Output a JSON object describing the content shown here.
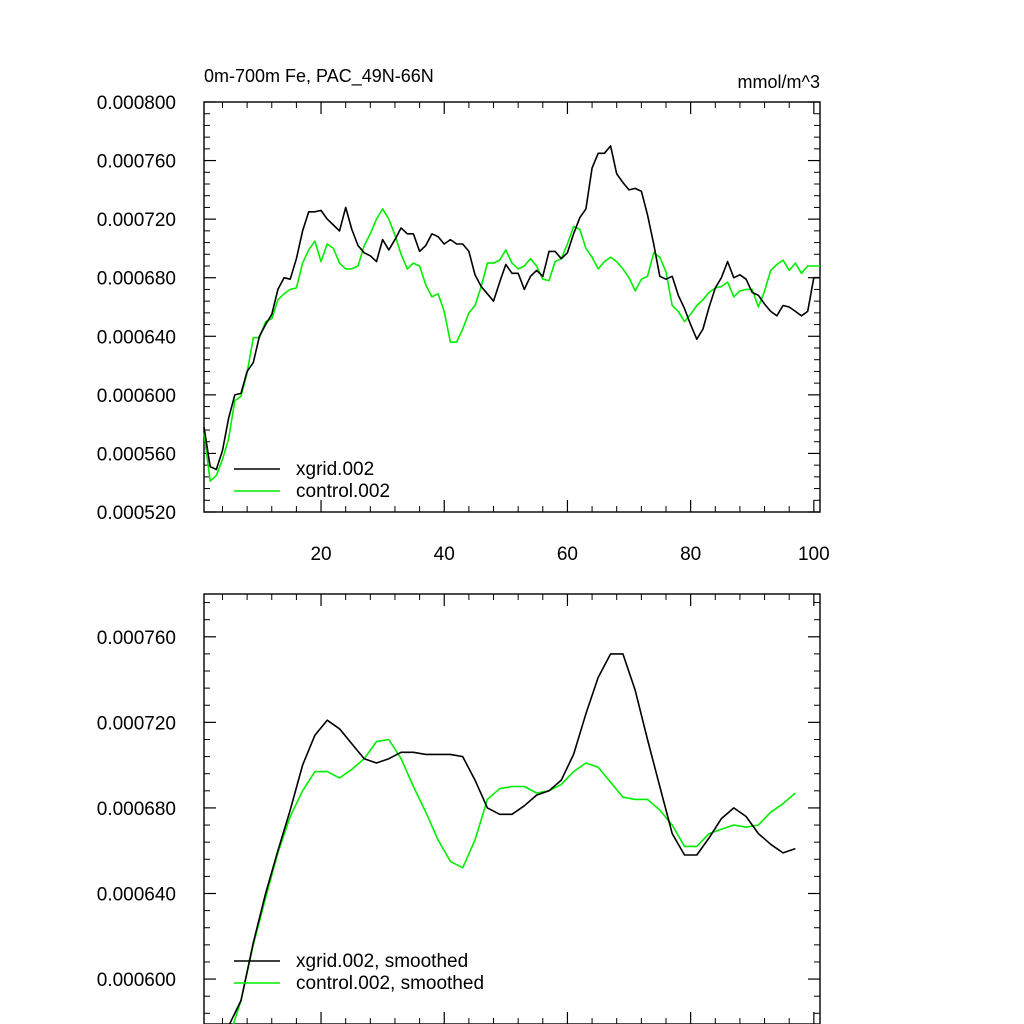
{
  "chart_data": [
    {
      "type": "line",
      "title": "0m-700m Fe, PAC_49N-66N",
      "units": "mmol/m^3",
      "xlim": [
        1,
        101
      ],
      "ylim": [
        0.00052,
        0.0008
      ],
      "xticks": [
        20,
        40,
        60,
        80,
        100
      ],
      "xtick_labels": [
        "20",
        "40",
        "60",
        "80",
        "100"
      ],
      "yticks": [
        0.00052,
        0.00056,
        0.0006,
        0.00064,
        0.00068,
        0.00072,
        0.00076,
        0.0008
      ],
      "ytick_labels": [
        "0.000520",
        "0.000560",
        "0.000600",
        "0.000640",
        "0.000680",
        "0.000720",
        "0.000760",
        "0.000800"
      ],
      "legend_position": "bottom-left",
      "series": [
        {
          "name": "xgrid.002",
          "color": "#000000",
          "x": [
            1,
            2,
            3,
            4,
            5,
            6,
            7,
            8,
            9,
            10,
            11,
            12,
            13,
            14,
            15,
            16,
            17,
            18,
            19,
            20,
            21,
            22,
            23,
            24,
            25,
            26,
            27,
            28,
            29,
            30,
            31,
            32,
            33,
            34,
            35,
            36,
            37,
            38,
            39,
            40,
            41,
            42,
            43,
            44,
            45,
            46,
            47,
            48,
            49,
            50,
            51,
            52,
            53,
            54,
            55,
            56,
            57,
            58,
            59,
            60,
            61,
            62,
            63,
            64,
            65,
            66,
            67,
            68,
            69,
            70,
            71,
            72,
            73,
            74,
            75,
            76,
            77,
            78,
            79,
            80,
            81,
            82,
            83,
            84,
            85,
            86,
            87,
            88,
            89,
            90,
            91,
            92,
            93,
            94,
            95,
            96,
            97,
            98,
            99,
            100,
            101
          ],
          "y": [
            0.000578,
            0.000551,
            0.000549,
            0.000562,
            0.000584,
            0.0006,
            0.000601,
            0.000616,
            0.000622,
            0.00064,
            0.000648,
            0.000655,
            0.000672,
            0.00068,
            0.000679,
            0.000693,
            0.000712,
            0.000725,
            0.000725,
            0.000726,
            0.00072,
            0.000716,
            0.000712,
            0.000728,
            0.000713,
            0.000702,
            0.000697,
            0.000695,
            0.000691,
            0.000706,
            0.000699,
            0.000706,
            0.000714,
            0.00071,
            0.00071,
            0.000698,
            0.000702,
            0.00071,
            0.000708,
            0.000703,
            0.000706,
            0.000703,
            0.000703,
            0.000698,
            0.000682,
            0.000674,
            0.000669,
            0.000664,
            0.000677,
            0.000689,
            0.000683,
            0.000683,
            0.000672,
            0.000681,
            0.000685,
            0.000681,
            0.000698,
            0.000698,
            0.000693,
            0.000697,
            0.00071,
            0.000721,
            0.000727,
            0.000755,
            0.000765,
            0.000765,
            0.00077,
            0.000751,
            0.000745,
            0.00074,
            0.000741,
            0.000739,
            0.000723,
            0.000703,
            0.000681,
            0.000679,
            0.000681,
            0.000668,
            0.000659,
            0.000648,
            0.000638,
            0.000645,
            0.00066,
            0.000673,
            0.00068,
            0.000691,
            0.00068,
            0.000682,
            0.000679,
            0.00067,
            0.000668,
            0.000662,
            0.000657,
            0.000654,
            0.000661,
            0.00066,
            0.000657,
            0.000654,
            0.000657,
            0.00068,
            0.00068
          ]
        },
        {
          "name": "control.002",
          "color": "#00ee00",
          "x": [
            1,
            2,
            3,
            4,
            5,
            6,
            7,
            8,
            9,
            10,
            11,
            12,
            13,
            14,
            15,
            16,
            17,
            18,
            19,
            20,
            21,
            22,
            23,
            24,
            25,
            26,
            27,
            28,
            29,
            30,
            31,
            32,
            33,
            34,
            35,
            36,
            37,
            38,
            39,
            40,
            41,
            42,
            43,
            44,
            45,
            46,
            47,
            48,
            49,
            50,
            51,
            52,
            53,
            54,
            55,
            56,
            57,
            58,
            59,
            60,
            61,
            62,
            63,
            64,
            65,
            66,
            67,
            68,
            69,
            70,
            71,
            72,
            73,
            74,
            75,
            76,
            77,
            78,
            79,
            80,
            81,
            82,
            83,
            84,
            85,
            86,
            87,
            88,
            89,
            90,
            91,
            92,
            93,
            94,
            95,
            96,
            97,
            98,
            99,
            100,
            101
          ],
          "y": [
            0.000574,
            0.000541,
            0.000545,
            0.000556,
            0.00057,
            0.000596,
            0.000599,
            0.000615,
            0.000639,
            0.000639,
            0.00065,
            0.000652,
            0.000665,
            0.000669,
            0.000672,
            0.000673,
            0.00069,
            0.000699,
            0.000705,
            0.000691,
            0.000703,
            0.0007,
            0.00069,
            0.000686,
            0.000686,
            0.000688,
            0.000702,
            0.00071,
            0.00072,
            0.000727,
            0.00072,
            0.000709,
            0.000696,
            0.000686,
            0.00069,
            0.000688,
            0.000675,
            0.000667,
            0.000669,
            0.000657,
            0.000636,
            0.000636,
            0.000645,
            0.000656,
            0.000661,
            0.000674,
            0.00069,
            0.00069,
            0.000692,
            0.000699,
            0.00069,
            0.000686,
            0.000688,
            0.000693,
            0.000688,
            0.000679,
            0.000678,
            0.000691,
            0.000693,
            0.000703,
            0.000715,
            0.000713,
            0.0007,
            0.000694,
            0.000686,
            0.000691,
            0.000694,
            0.000691,
            0.000686,
            0.00068,
            0.000671,
            0.000679,
            0.000681,
            0.000697,
            0.000694,
            0.000684,
            0.000661,
            0.000657,
            0.00065,
            0.000655,
            0.000661,
            0.000665,
            0.00067,
            0.000673,
            0.000674,
            0.000677,
            0.000667,
            0.000671,
            0.000672,
            0.000672,
            0.00066,
            0.000671,
            0.000685,
            0.000689,
            0.000692,
            0.000685,
            0.00069,
            0.000683,
            0.000688,
            0.000688,
            0.000688
          ]
        }
      ]
    },
    {
      "type": "line",
      "xlim": [
        1,
        101
      ],
      "ylim": [
        0.000579,
        0.00078
      ],
      "xticks": [
        20,
        40,
        60,
        80,
        100
      ],
      "yticks": [
        0.0006,
        0.00064,
        0.00068,
        0.00072,
        0.00076
      ],
      "ytick_labels": [
        "0.000600",
        "0.000640",
        "0.000680",
        "0.000720",
        "0.000760"
      ],
      "legend_position": "bottom-left",
      "series": [
        {
          "name": "xgrid.002, smoothed",
          "color": "#000000",
          "x": [
            5,
            7,
            9,
            11,
            13,
            15,
            17,
            19,
            21,
            23,
            25,
            27,
            29,
            31,
            33,
            35,
            37,
            39,
            41,
            43,
            45,
            47,
            49,
            51,
            53,
            55,
            57,
            59,
            61,
            63,
            65,
            67,
            69,
            71,
            73,
            75,
            77,
            79,
            81,
            83,
            85,
            87,
            89,
            91,
            93,
            95,
            97
          ],
          "y": [
            0.000578,
            0.00059,
            0.000617,
            0.00064,
            0.00066,
            0.000679,
            0.0007,
            0.000714,
            0.000721,
            0.000717,
            0.00071,
            0.000703,
            0.000701,
            0.000703,
            0.000706,
            0.000706,
            0.000705,
            0.000705,
            0.000705,
            0.000704,
            0.000693,
            0.00068,
            0.000677,
            0.000677,
            0.000681,
            0.000686,
            0.000688,
            0.000693,
            0.000705,
            0.000724,
            0.000741,
            0.000752,
            0.000752,
            0.000735,
            0.000712,
            0.00069,
            0.000668,
            0.000658,
            0.000658,
            0.000666,
            0.000675,
            0.00068,
            0.000676,
            0.000668,
            0.000663,
            0.000659,
            0.000661
          ]
        },
        {
          "name": "control.002, smoothed",
          "color": "#00ee00",
          "x": [
            5,
            7,
            9,
            11,
            13,
            15,
            17,
            19,
            21,
            23,
            25,
            27,
            29,
            31,
            33,
            35,
            37,
            39,
            41,
            43,
            45,
            47,
            49,
            51,
            53,
            55,
            57,
            59,
            61,
            63,
            65,
            67,
            69,
            71,
            73,
            75,
            77,
            79,
            81,
            83,
            85,
            87,
            89,
            91,
            93,
            95,
            97
          ],
          "y": [
            0.000572,
            0.00059,
            0.000616,
            0.000638,
            0.000659,
            0.000676,
            0.000688,
            0.000697,
            0.000697,
            0.000694,
            0.000698,
            0.000703,
            0.000711,
            0.000712,
            0.000703,
            0.00069,
            0.000678,
            0.000665,
            0.000655,
            0.000652,
            0.000665,
            0.000684,
            0.000689,
            0.00069,
            0.00069,
            0.000687,
            0.000688,
            0.000691,
            0.000697,
            0.000701,
            0.000699,
            0.000692,
            0.000685,
            0.000684,
            0.000684,
            0.000679,
            0.000672,
            0.000662,
            0.000662,
            0.000668,
            0.00067,
            0.000672,
            0.000671,
            0.000672,
            0.000678,
            0.000682,
            0.000687
          ]
        }
      ]
    }
  ]
}
